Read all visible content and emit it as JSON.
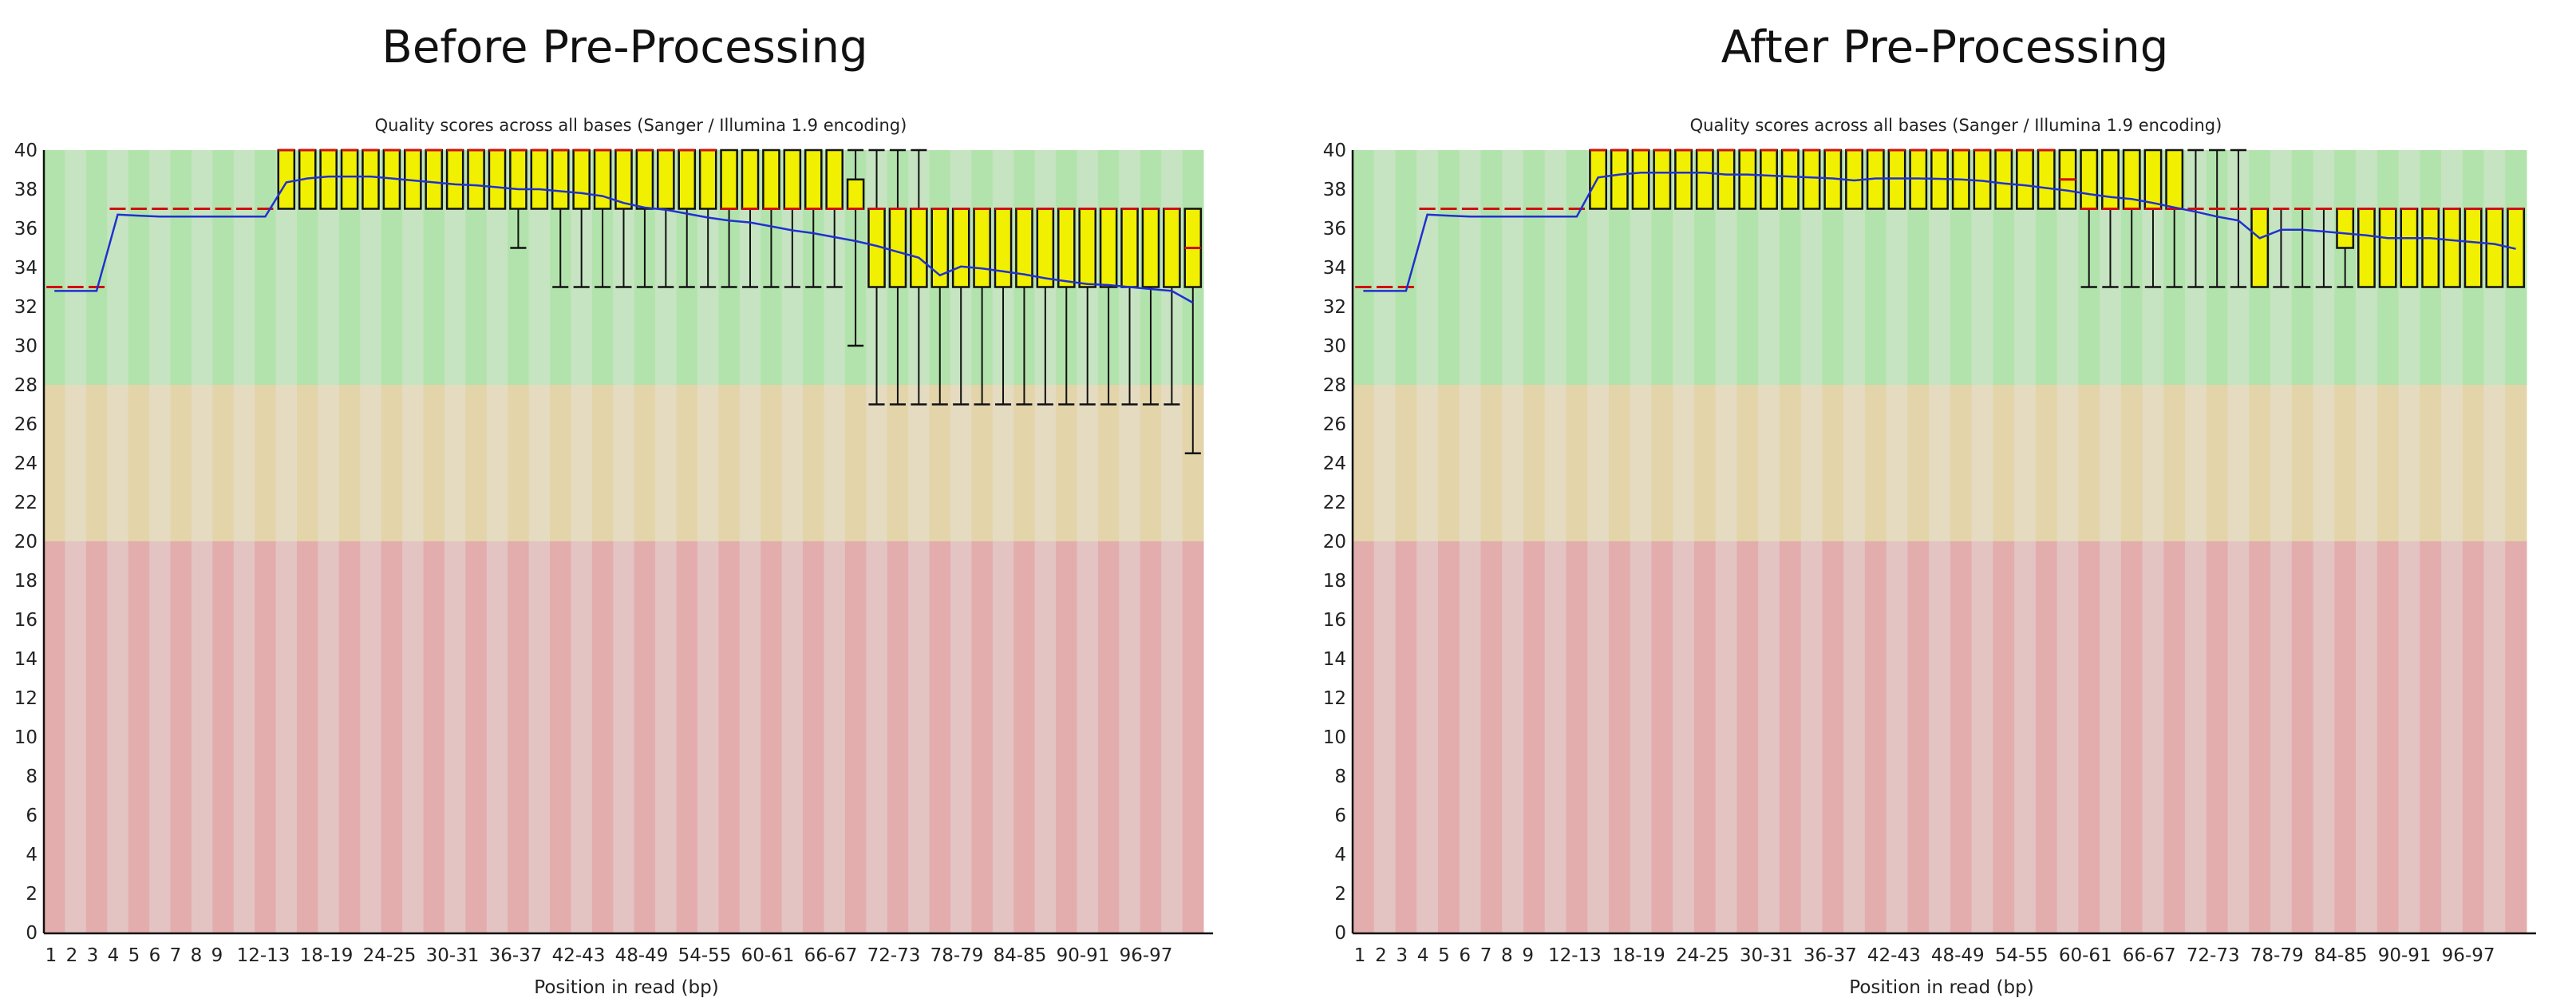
{
  "panels": [
    {
      "heading": "Before Pre-Processing"
    },
    {
      "heading": "After Pre-Processing"
    }
  ],
  "colors": {
    "good_dark": "#b3e3ac",
    "good_light": "#c6e4c1",
    "warn_dark": "#e3d4aa",
    "warn_light": "#e4dbc1",
    "bad_dark": "#e3adad",
    "bad_light": "#e4c3c3",
    "box_fill": "#f0f000",
    "median": "#d01010",
    "mean": "#2030d0",
    "whisker": "#111111"
  },
  "chart_data": [
    {
      "type": "box",
      "title": "Quality scores across all bases (Sanger / Illumina 1.9 encoding)",
      "xlabel": "Position in read (bp)",
      "ylabel": "",
      "ylim": [
        0,
        40
      ],
      "zones": {
        "bad": [
          0,
          20
        ],
        "warn": [
          20,
          28
        ],
        "good": [
          28,
          40
        ]
      },
      "y_ticks": [
        0,
        2,
        4,
        6,
        8,
        10,
        12,
        14,
        16,
        18,
        20,
        22,
        24,
        26,
        28,
        30,
        32,
        34,
        36,
        38,
        40
      ],
      "x_tick_labels": [
        "1",
        "2",
        "3",
        "4",
        "5",
        "6",
        "7",
        "8",
        "9",
        "12-13",
        "18-19",
        "24-25",
        "30-31",
        "36-37",
        "42-43",
        "48-49",
        "54-55",
        "60-61",
        "66-67",
        "72-73",
        "78-79",
        "84-85",
        "90-91",
        "96-97"
      ],
      "series": {
        "median": [
          33,
          33,
          33,
          37,
          37,
          37,
          37,
          37,
          37,
          37,
          37,
          40,
          40,
          40,
          40,
          40,
          40,
          40,
          40,
          40,
          40,
          40,
          40,
          40,
          40,
          40,
          40,
          40,
          40,
          40,
          40,
          40,
          37,
          37,
          37,
          37,
          37,
          37,
          37,
          37,
          37,
          37,
          37,
          37,
          37,
          37,
          37,
          37,
          37,
          37,
          37,
          37,
          37,
          37,
          35
        ],
        "q1": [
          33,
          33,
          33,
          37,
          37,
          37,
          37,
          37,
          37,
          37,
          37,
          37,
          37,
          37,
          37,
          37,
          37,
          37,
          37,
          37,
          37,
          37,
          37,
          37,
          37,
          37,
          37,
          37,
          37,
          37,
          37,
          37,
          37,
          37,
          37,
          37,
          37,
          37,
          37,
          33,
          33,
          33,
          33,
          33,
          33,
          33,
          33,
          33,
          33,
          33,
          33,
          33,
          33,
          33,
          33
        ],
        "q3": [
          33,
          33,
          33,
          37,
          37,
          37,
          37,
          37,
          37,
          37,
          37,
          40,
          40,
          40,
          40,
          40,
          40,
          40,
          40,
          40,
          40,
          40,
          40,
          40,
          40,
          40,
          40,
          40,
          40,
          40,
          40,
          40,
          40,
          40,
          40,
          40,
          40,
          40,
          38.5,
          37,
          37,
          37,
          37,
          37,
          37,
          37,
          37,
          37,
          37,
          37,
          37,
          37,
          37,
          37,
          37
        ],
        "p10": [
          33,
          33,
          33,
          37,
          37,
          37,
          37,
          37,
          37,
          37,
          37,
          37,
          37,
          37,
          37,
          37,
          37,
          37,
          37,
          37,
          37,
          37,
          35,
          37,
          33,
          33,
          33,
          33,
          33,
          33,
          33,
          33,
          33,
          33,
          33,
          33,
          33,
          33,
          30,
          27,
          27,
          27,
          27,
          27,
          27,
          27,
          27,
          27,
          27,
          27,
          27,
          27,
          27,
          27,
          24.5
        ],
        "p90": [
          33,
          33,
          33,
          37,
          37,
          37,
          37,
          37,
          37,
          37,
          37,
          40,
          40,
          40,
          40,
          40,
          40,
          40,
          40,
          40,
          40,
          40,
          40,
          40,
          40,
          40,
          40,
          40,
          40,
          40,
          40,
          40,
          40,
          40,
          40,
          40,
          40,
          40,
          40,
          40,
          40,
          40,
          37,
          37,
          37,
          37,
          37,
          37,
          37,
          37,
          37,
          37,
          37,
          37,
          37
        ],
        "mean": [
          32.8,
          32.8,
          32.8,
          36.7,
          36.65,
          36.6,
          36.6,
          36.6,
          36.6,
          36.6,
          36.6,
          38.35,
          38.55,
          38.65,
          38.65,
          38.65,
          38.55,
          38.45,
          38.35,
          38.25,
          38.2,
          38.1,
          38.0,
          38.0,
          37.9,
          37.8,
          37.65,
          37.3,
          37.06,
          36.95,
          36.75,
          36.55,
          36.4,
          36.3,
          36.1,
          35.9,
          35.75,
          35.55,
          35.35,
          35.1,
          34.8,
          34.5,
          33.6,
          34.05,
          33.95,
          33.8,
          33.65,
          33.45,
          33.3,
          33.15,
          33.1,
          33.0,
          32.9,
          32.8,
          32.2
        ]
      }
    },
    {
      "type": "box",
      "title": "Quality scores across all bases (Sanger / Illumina 1.9 encoding)",
      "xlabel": "Position in read (bp)",
      "ylabel": "",
      "ylim": [
        0,
        40
      ],
      "zones": {
        "bad": [
          0,
          20
        ],
        "warn": [
          20,
          28
        ],
        "good": [
          28,
          40
        ]
      },
      "y_ticks": [
        0,
        2,
        4,
        6,
        8,
        10,
        12,
        14,
        16,
        18,
        20,
        22,
        24,
        26,
        28,
        30,
        32,
        34,
        36,
        38,
        40
      ],
      "x_tick_labels": [
        "1",
        "2",
        "3",
        "4",
        "5",
        "6",
        "7",
        "8",
        "9",
        "12-13",
        "18-19",
        "24-25",
        "30-31",
        "36-37",
        "42-43",
        "48-49",
        "54-55",
        "60-61",
        "66-67",
        "72-73",
        "78-79",
        "84-85",
        "90-91",
        "96-97"
      ],
      "series": {
        "median": [
          33,
          33,
          33,
          37,
          37,
          37,
          37,
          37,
          37,
          37,
          37,
          40,
          40,
          40,
          40,
          40,
          40,
          40,
          40,
          40,
          40,
          40,
          40,
          40,
          40,
          40,
          40,
          40,
          40,
          40,
          40,
          40,
          40,
          38.5,
          37,
          37,
          37,
          37,
          37,
          37,
          37,
          37,
          37,
          37,
          37,
          37,
          37,
          37,
          37,
          37,
          37,
          37,
          37,
          37,
          37
        ],
        "q1": [
          33,
          33,
          33,
          37,
          37,
          37,
          37,
          37,
          37,
          37,
          37,
          37,
          37,
          37,
          37,
          37,
          37,
          37,
          37,
          37,
          37,
          37,
          37,
          37,
          37,
          37,
          37,
          37,
          37,
          37,
          37,
          37,
          37,
          37,
          37,
          37,
          37,
          37,
          37,
          37,
          37,
          37,
          33,
          37,
          37,
          37,
          35,
          33,
          33,
          33,
          33,
          33,
          33,
          33,
          33
        ],
        "q3": [
          33,
          33,
          33,
          37,
          37,
          37,
          37,
          37,
          37,
          37,
          37,
          40,
          40,
          40,
          40,
          40,
          40,
          40,
          40,
          40,
          40,
          40,
          40,
          40,
          40,
          40,
          40,
          40,
          40,
          40,
          40,
          40,
          40,
          40,
          40,
          40,
          40,
          40,
          40,
          37,
          37,
          37,
          37,
          37,
          37,
          37,
          37,
          37,
          37,
          37,
          37,
          37,
          37,
          37,
          37
        ],
        "p10": [
          33,
          33,
          33,
          37,
          37,
          37,
          37,
          37,
          37,
          37,
          37,
          37,
          37,
          37,
          37,
          37,
          37,
          37,
          37,
          37,
          37,
          37,
          37,
          37,
          37,
          37,
          37,
          37,
          37,
          37,
          37,
          37,
          37,
          37,
          33,
          33,
          33,
          33,
          33,
          33,
          33,
          33,
          33,
          33,
          33,
          33,
          33,
          33,
          33,
          33,
          33,
          33,
          33,
          33,
          33
        ],
        "p90": [
          33,
          33,
          33,
          37,
          37,
          37,
          37,
          37,
          37,
          37,
          37,
          40,
          40,
          40,
          40,
          40,
          40,
          40,
          40,
          40,
          40,
          40,
          40,
          40,
          40,
          40,
          40,
          40,
          40,
          40,
          40,
          40,
          40,
          40,
          40,
          40,
          40,
          40,
          40,
          40,
          40,
          40,
          37,
          37,
          37,
          37,
          37,
          37,
          37,
          37,
          37,
          37,
          37,
          37,
          37
        ],
        "mean": [
          32.8,
          32.8,
          32.8,
          36.7,
          36.65,
          36.6,
          36.6,
          36.6,
          36.6,
          36.6,
          36.6,
          38.6,
          38.75,
          38.85,
          38.85,
          38.85,
          38.85,
          38.75,
          38.75,
          38.7,
          38.65,
          38.6,
          38.55,
          38.45,
          38.55,
          38.55,
          38.55,
          38.53,
          38.5,
          38.43,
          38.3,
          38.2,
          38.06,
          37.93,
          37.75,
          37.6,
          37.5,
          37.3,
          37.07,
          36.85,
          36.6,
          36.4,
          35.5,
          35.93,
          35.93,
          35.84,
          35.74,
          35.64,
          35.5,
          35.5,
          35.5,
          35.39,
          35.3,
          35.2,
          34.95
        ]
      }
    }
  ]
}
